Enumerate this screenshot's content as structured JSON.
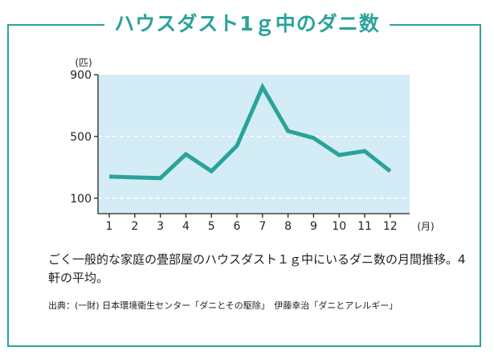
{
  "title": "ハウスダスト1ｇ中のダニ数",
  "caption": "ごく一般的な家庭の畳部屋のハウスダスト１ｇ中にいるダニ数の月間推移。4軒の平均。",
  "source": "出典：(一財) 日本環境衛生センター「ダニとその駆除」　伊藤幸治「ダニとアレルギー」",
  "colors": {
    "accent": "#2aa39a",
    "plot_bg": "#d4ecf5",
    "line": "#2aa39a"
  },
  "chart_data": {
    "type": "line",
    "title": "ハウスダスト1ｇ中のダニ数",
    "ylabel": "(匹)",
    "xlabel": "(月)",
    "x": [
      1,
      2,
      3,
      4,
      5,
      6,
      7,
      8,
      9,
      10,
      11,
      12
    ],
    "values": [
      240,
      235,
      230,
      385,
      275,
      440,
      820,
      535,
      490,
      380,
      405,
      275
    ],
    "ylim": [
      0,
      900
    ],
    "yticks": [
      100,
      500,
      900
    ],
    "grid": "horizontal-dashed",
    "legend": "none"
  }
}
